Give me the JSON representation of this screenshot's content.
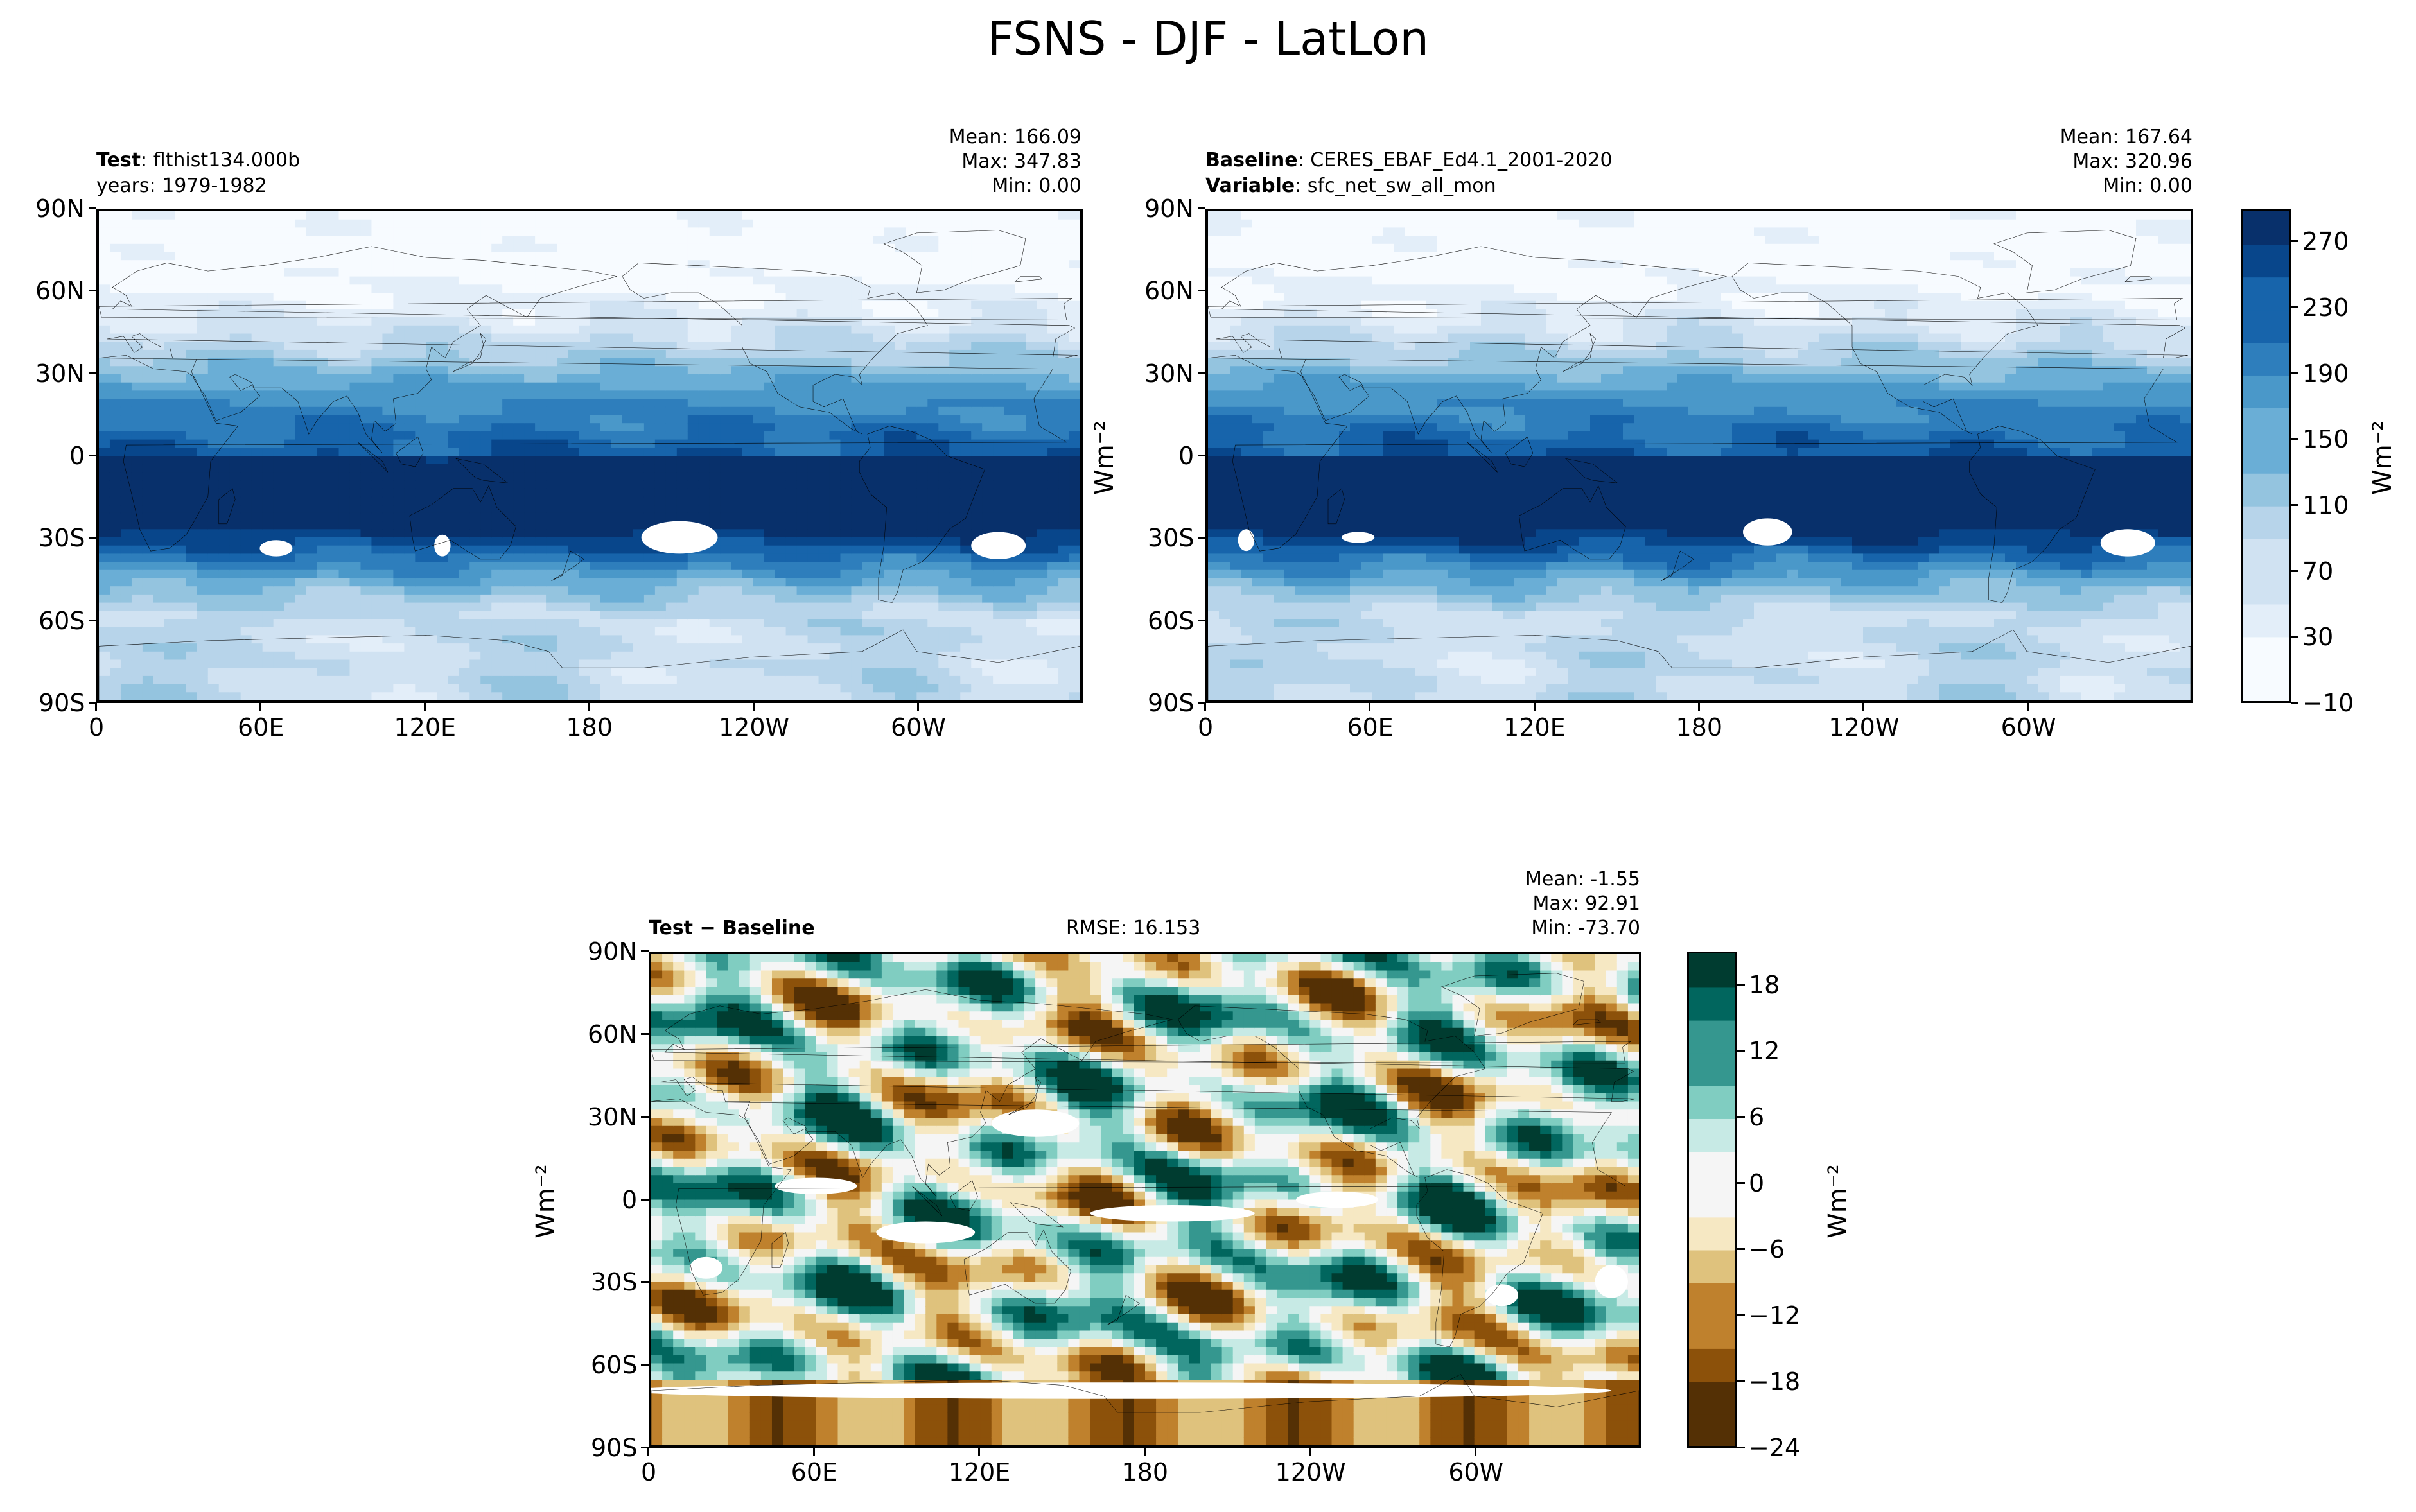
{
  "figure": {
    "title": "FSNS - DJF - LatLon"
  },
  "panels": {
    "test": {
      "label_bold": "Test",
      "label_sep": ": ",
      "label_value": "flthist134.000b",
      "line2": "years: 1979-1982",
      "stats": [
        "Mean: 166.09",
        "Max: 347.83",
        "Min:  0.00"
      ]
    },
    "baseline": {
      "label_bold": "Baseline",
      "label_sep": ": ",
      "label_value": "CERES_EBAF_Ed4.1_2001-2020",
      "line2_bold": "Variable",
      "line2_sep": ": ",
      "line2_value": "sfc_net_sw_all_mon",
      "stats": [
        "Mean: 167.64",
        "Max: 320.96",
        "Min:  0.00"
      ]
    },
    "diff": {
      "label_bold": "Test − Baseline",
      "rmse": "RMSE: 16.153",
      "stats": [
        "Mean: -1.55",
        "Max: 92.91",
        "Min: -73.70"
      ]
    }
  },
  "units_label": "Wm⁻²",
  "chart_data": [
    {
      "type": "heatmap",
      "title": "Test: flthist134.000b (years: 1979-1982)",
      "xlabel": "",
      "ylabel": "",
      "x_ticks": [
        "0",
        "60E",
        "120E",
        "180",
        "120W",
        "60W"
      ],
      "y_ticks": [
        "90N",
        "60N",
        "30N",
        "0",
        "30S",
        "60S",
        "90S"
      ],
      "xlim": [
        0,
        360
      ],
      "ylim": [
        -90,
        90
      ],
      "mean": 166.09,
      "max": 347.83,
      "min": 0.0
    },
    {
      "type": "heatmap",
      "title": "Baseline: CERES_EBAF_Ed4.1_2001-2020 (Variable: sfc_net_sw_all_mon)",
      "xlabel": "",
      "ylabel": "Wm⁻²",
      "x_ticks": [
        "0",
        "60E",
        "120E",
        "180",
        "120W",
        "60W"
      ],
      "y_ticks": [
        "90N",
        "60N",
        "30N",
        "0",
        "30S",
        "60S",
        "90S"
      ],
      "xlim": [
        0,
        360
      ],
      "ylim": [
        -90,
        90
      ],
      "mean": 167.64,
      "max": 320.96,
      "min": 0.0,
      "colorbar": {
        "label": "Wm⁻²",
        "ticks": [
          270,
          230,
          190,
          150,
          110,
          70,
          30,
          -10
        ],
        "range": [
          -10,
          290
        ]
      }
    },
    {
      "type": "heatmap",
      "title": "Test − Baseline",
      "xlabel": "",
      "ylabel": "Wm⁻²",
      "x_ticks": [
        "0",
        "60E",
        "120E",
        "180",
        "120W",
        "60W"
      ],
      "y_ticks": [
        "90N",
        "60N",
        "30N",
        "0",
        "30S",
        "60S",
        "90S"
      ],
      "xlim": [
        0,
        360
      ],
      "ylim": [
        -90,
        90
      ],
      "mean": -1.55,
      "max": 92.91,
      "min": -73.7,
      "rmse": 16.153,
      "colorbar": {
        "label": "Wm⁻²",
        "ticks": [
          18,
          12,
          6,
          0,
          -6,
          -12,
          -18,
          -24
        ],
        "range": [
          -24,
          21
        ]
      }
    }
  ],
  "colors": {
    "blues": [
      "#f7fbff",
      "#e3eef9",
      "#d0e2f2",
      "#b7d4ea",
      "#94c4df",
      "#6aaed6",
      "#4a98c9",
      "#2e7ebc",
      "#1764ab",
      "#08468b",
      "#08306b"
    ],
    "brbg": [
      "#543005",
      "#8c510a",
      "#bf812d",
      "#dfc27d",
      "#f6e8c3",
      "#f5f5f5",
      "#c7eae5",
      "#80cdc1",
      "#35978f",
      "#01665e",
      "#003c30"
    ]
  }
}
